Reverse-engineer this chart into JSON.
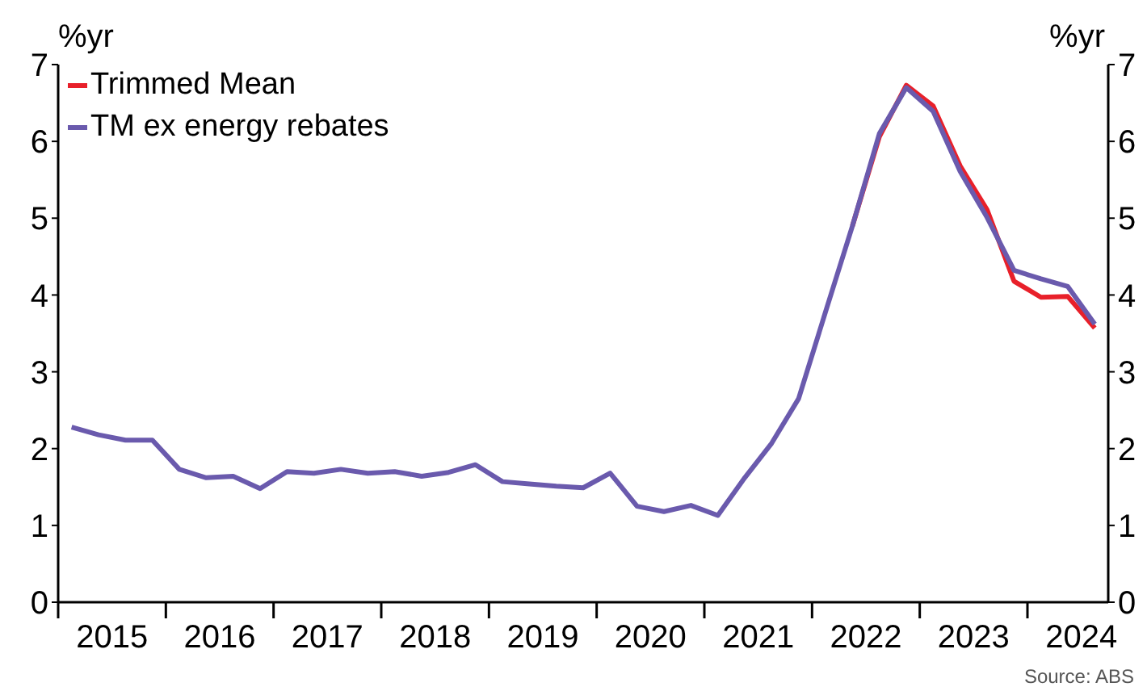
{
  "chart_data": {
    "type": "line",
    "ylabel": "%yr",
    "y2label": "%yr",
    "x": [
      2015.125,
      2015.375,
      2015.625,
      2015.875,
      2016.125,
      2016.375,
      2016.625,
      2016.875,
      2017.125,
      2017.375,
      2017.625,
      2017.875,
      2018.125,
      2018.375,
      2018.625,
      2018.875,
      2019.125,
      2019.375,
      2019.625,
      2019.875,
      2020.125,
      2020.375,
      2020.625,
      2020.875,
      2021.125,
      2021.375,
      2021.625,
      2021.875,
      2022.125,
      2022.375,
      2022.625,
      2022.875,
      2023.125,
      2023.375,
      2023.625,
      2023.875,
      2024.125,
      2024.375,
      2024.625
    ],
    "series": [
      {
        "name": "Trimmed Mean",
        "color": "#e8202a",
        "values": [
          null,
          null,
          null,
          null,
          null,
          null,
          null,
          null,
          null,
          null,
          null,
          null,
          null,
          null,
          null,
          null,
          null,
          null,
          null,
          null,
          null,
          null,
          null,
          null,
          null,
          null,
          null,
          null,
          null,
          4.9,
          6.06,
          6.73,
          6.46,
          5.68,
          5.11,
          4.18,
          3.97,
          3.98,
          3.57
        ]
      },
      {
        "name": "TM ex energy rebates",
        "color": "#6a5aad",
        "values": [
          2.28,
          2.18,
          2.11,
          2.11,
          1.73,
          1.62,
          1.64,
          1.48,
          1.7,
          1.68,
          1.73,
          1.68,
          1.7,
          1.64,
          1.69,
          1.79,
          1.57,
          1.54,
          1.51,
          1.49,
          1.68,
          1.25,
          1.18,
          1.26,
          1.13,
          1.62,
          2.07,
          2.65,
          3.78,
          4.9,
          6.1,
          6.7,
          6.39,
          5.61,
          5.01,
          4.32,
          4.21,
          4.11,
          3.62
        ]
      }
    ],
    "xlim": [
      2015,
      2024.75
    ],
    "xticks": [
      {
        "value": 2015,
        "label": null
      },
      {
        "value": 2015.5,
        "label": "2015"
      },
      {
        "value": 2016,
        "label": null
      },
      {
        "value": 2016.5,
        "label": "2016"
      },
      {
        "value": 2017,
        "label": null
      },
      {
        "value": 2017.5,
        "label": "2017"
      },
      {
        "value": 2018,
        "label": null
      },
      {
        "value": 2018.5,
        "label": "2018"
      },
      {
        "value": 2019,
        "label": null
      },
      {
        "value": 2019.5,
        "label": "2019"
      },
      {
        "value": 2020,
        "label": null
      },
      {
        "value": 2020.5,
        "label": "2020"
      },
      {
        "value": 2021,
        "label": null
      },
      {
        "value": 2021.5,
        "label": "2021"
      },
      {
        "value": 2022,
        "label": null
      },
      {
        "value": 2022.5,
        "label": "2022"
      },
      {
        "value": 2023,
        "label": null
      },
      {
        "value": 2023.5,
        "label": "2023"
      },
      {
        "value": 2024,
        "label": null
      },
      {
        "value": 2024.5,
        "label": "2024"
      }
    ],
    "ylim": [
      0,
      7
    ],
    "yticks": [
      0,
      1,
      2,
      3,
      4,
      5,
      6,
      7
    ],
    "y2lim": [
      0,
      7
    ],
    "y2ticks": [
      0,
      1,
      2,
      3,
      4,
      5,
      6,
      7
    ],
    "legend": "top left",
    "grid": false,
    "marker": "none",
    "line_style": "solid",
    "annotations": [
      "Source: ABS"
    ]
  }
}
